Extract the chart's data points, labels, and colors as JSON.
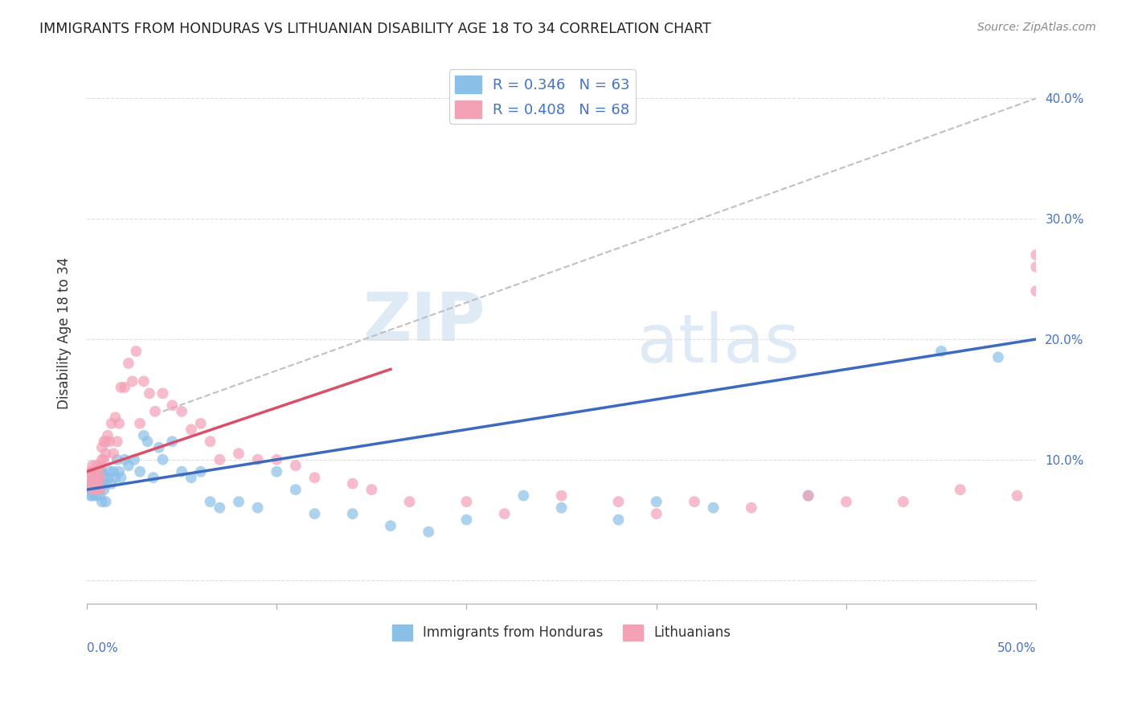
{
  "title": "IMMIGRANTS FROM HONDURAS VS LITHUANIAN DISABILITY AGE 18 TO 34 CORRELATION CHART",
  "source": "Source: ZipAtlas.com",
  "ylabel": "Disability Age 18 to 34",
  "x_range": [
    0,
    0.5
  ],
  "y_range": [
    -0.02,
    0.43
  ],
  "legend1_label": "R = 0.346   N = 63",
  "legend2_label": "R = 0.408   N = 68",
  "legend_bottom_label1": "Immigrants from Honduras",
  "legend_bottom_label2": "Lithuanians",
  "blue_color": "#8abfe8",
  "pink_color": "#f4a0b5",
  "blue_line_color": "#3b6abf",
  "pink_line_color": "#d9506a",
  "dashed_line_color": "#c0c0c0",
  "watermark_zip": "ZIP",
  "watermark_atlas": "atlas",
  "blue_scatter_x": [
    0.001,
    0.002,
    0.002,
    0.003,
    0.003,
    0.003,
    0.004,
    0.004,
    0.005,
    0.005,
    0.005,
    0.006,
    0.006,
    0.007,
    0.007,
    0.007,
    0.008,
    0.008,
    0.008,
    0.009,
    0.009,
    0.01,
    0.01,
    0.011,
    0.012,
    0.013,
    0.014,
    0.015,
    0.016,
    0.017,
    0.018,
    0.02,
    0.022,
    0.025,
    0.028,
    0.03,
    0.032,
    0.035,
    0.038,
    0.04,
    0.045,
    0.05,
    0.055,
    0.06,
    0.065,
    0.07,
    0.08,
    0.09,
    0.1,
    0.11,
    0.12,
    0.14,
    0.16,
    0.18,
    0.2,
    0.23,
    0.25,
    0.28,
    0.3,
    0.33,
    0.38,
    0.45,
    0.48
  ],
  "blue_scatter_y": [
    0.08,
    0.075,
    0.07,
    0.09,
    0.08,
    0.07,
    0.085,
    0.075,
    0.09,
    0.085,
    0.07,
    0.085,
    0.075,
    0.09,
    0.08,
    0.07,
    0.09,
    0.08,
    0.065,
    0.085,
    0.075,
    0.08,
    0.065,
    0.085,
    0.09,
    0.08,
    0.09,
    0.085,
    0.1,
    0.09,
    0.085,
    0.1,
    0.095,
    0.1,
    0.09,
    0.12,
    0.115,
    0.085,
    0.11,
    0.1,
    0.115,
    0.09,
    0.085,
    0.09,
    0.065,
    0.06,
    0.065,
    0.06,
    0.09,
    0.075,
    0.055,
    0.055,
    0.045,
    0.04,
    0.05,
    0.07,
    0.06,
    0.05,
    0.065,
    0.06,
    0.07,
    0.19,
    0.185
  ],
  "pink_scatter_x": [
    0.001,
    0.002,
    0.002,
    0.003,
    0.003,
    0.003,
    0.004,
    0.004,
    0.005,
    0.005,
    0.005,
    0.006,
    0.006,
    0.007,
    0.007,
    0.007,
    0.008,
    0.008,
    0.009,
    0.009,
    0.01,
    0.01,
    0.011,
    0.012,
    0.013,
    0.014,
    0.015,
    0.016,
    0.017,
    0.018,
    0.02,
    0.022,
    0.024,
    0.026,
    0.028,
    0.03,
    0.033,
    0.036,
    0.04,
    0.045,
    0.05,
    0.055,
    0.06,
    0.065,
    0.07,
    0.08,
    0.09,
    0.1,
    0.11,
    0.12,
    0.14,
    0.15,
    0.17,
    0.2,
    0.22,
    0.25,
    0.28,
    0.3,
    0.32,
    0.35,
    0.38,
    0.4,
    0.43,
    0.46,
    0.49,
    0.5,
    0.5,
    0.5
  ],
  "pink_scatter_y": [
    0.085,
    0.09,
    0.08,
    0.095,
    0.085,
    0.075,
    0.09,
    0.08,
    0.095,
    0.085,
    0.075,
    0.09,
    0.08,
    0.095,
    0.085,
    0.075,
    0.11,
    0.1,
    0.115,
    0.1,
    0.115,
    0.105,
    0.12,
    0.115,
    0.13,
    0.105,
    0.135,
    0.115,
    0.13,
    0.16,
    0.16,
    0.18,
    0.165,
    0.19,
    0.13,
    0.165,
    0.155,
    0.14,
    0.155,
    0.145,
    0.14,
    0.125,
    0.13,
    0.115,
    0.1,
    0.105,
    0.1,
    0.1,
    0.095,
    0.085,
    0.08,
    0.075,
    0.065,
    0.065,
    0.055,
    0.07,
    0.065,
    0.055,
    0.065,
    0.06,
    0.07,
    0.065,
    0.065,
    0.075,
    0.07,
    0.24,
    0.27,
    0.26
  ],
  "blue_fit_x": [
    0.0,
    0.5
  ],
  "blue_fit_y": [
    0.075,
    0.2
  ],
  "pink_fit_x": [
    0.0,
    0.16
  ],
  "pink_fit_y": [
    0.09,
    0.175
  ],
  "dashed_fit_x": [
    0.04,
    0.5
  ],
  "dashed_fit_y": [
    0.14,
    0.4
  ]
}
